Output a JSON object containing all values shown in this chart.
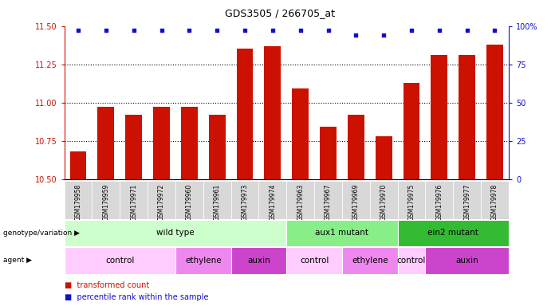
{
  "title": "GDS3505 / 266705_at",
  "samples": [
    "GSM179958",
    "GSM179959",
    "GSM179971",
    "GSM179972",
    "GSM179960",
    "GSM179961",
    "GSM179973",
    "GSM179974",
    "GSM179963",
    "GSM179967",
    "GSM179969",
    "GSM179970",
    "GSM179975",
    "GSM179976",
    "GSM179977",
    "GSM179978"
  ],
  "bar_values": [
    10.68,
    10.97,
    10.92,
    10.97,
    10.97,
    10.92,
    11.35,
    11.37,
    11.09,
    10.84,
    10.92,
    10.78,
    11.13,
    11.31,
    11.31,
    11.38
  ],
  "percentile_y_left": [
    11.47,
    11.47,
    11.47,
    11.47,
    11.47,
    11.47,
    11.47,
    11.47,
    11.47,
    11.47,
    11.44,
    11.44,
    11.47,
    11.47,
    11.47,
    11.47
  ],
  "ylim_left": [
    10.5,
    11.5
  ],
  "ylim_right": [
    0,
    100
  ],
  "yticks_left": [
    10.5,
    10.75,
    11.0,
    11.25,
    11.5
  ],
  "yticks_right": [
    0,
    25,
    50,
    75,
    100
  ],
  "ytick_right_labels": [
    "0",
    "25",
    "50",
    "75",
    "100%"
  ],
  "bar_color": "#cc1100",
  "dot_color": "#1111cc",
  "bar_bottom": 10.5,
  "genotype_groups": [
    {
      "label": "wild type",
      "start": 0,
      "end": 7,
      "color": "#ccffcc"
    },
    {
      "label": "aux1 mutant",
      "start": 8,
      "end": 11,
      "color": "#88ee88"
    },
    {
      "label": "ein2 mutant",
      "start": 12,
      "end": 15,
      "color": "#33bb33"
    }
  ],
  "agent_groups": [
    {
      "label": "control",
      "start": 0,
      "end": 3,
      "color": "#ffccff"
    },
    {
      "label": "ethylene",
      "start": 4,
      "end": 5,
      "color": "#ee88ee"
    },
    {
      "label": "auxin",
      "start": 6,
      "end": 7,
      "color": "#cc44cc"
    },
    {
      "label": "control",
      "start": 8,
      "end": 9,
      "color": "#ffccff"
    },
    {
      "label": "ethylene",
      "start": 10,
      "end": 11,
      "color": "#ee88ee"
    },
    {
      "label": "control",
      "start": 12,
      "end": 12,
      "color": "#ffccff"
    },
    {
      "label": "auxin",
      "start": 13,
      "end": 15,
      "color": "#cc44cc"
    }
  ],
  "legend_items": [
    {
      "label": "transformed count",
      "color": "#cc1100",
      "marker": "s"
    },
    {
      "label": "percentile rank within the sample",
      "color": "#1111cc",
      "marker": "s"
    }
  ],
  "left_label_color": "#cc1100",
  "right_label_color": "#1111cc",
  "genotype_label": "genotype/variation",
  "agent_label": "agent",
  "fig_width": 7.01,
  "fig_height": 3.84
}
